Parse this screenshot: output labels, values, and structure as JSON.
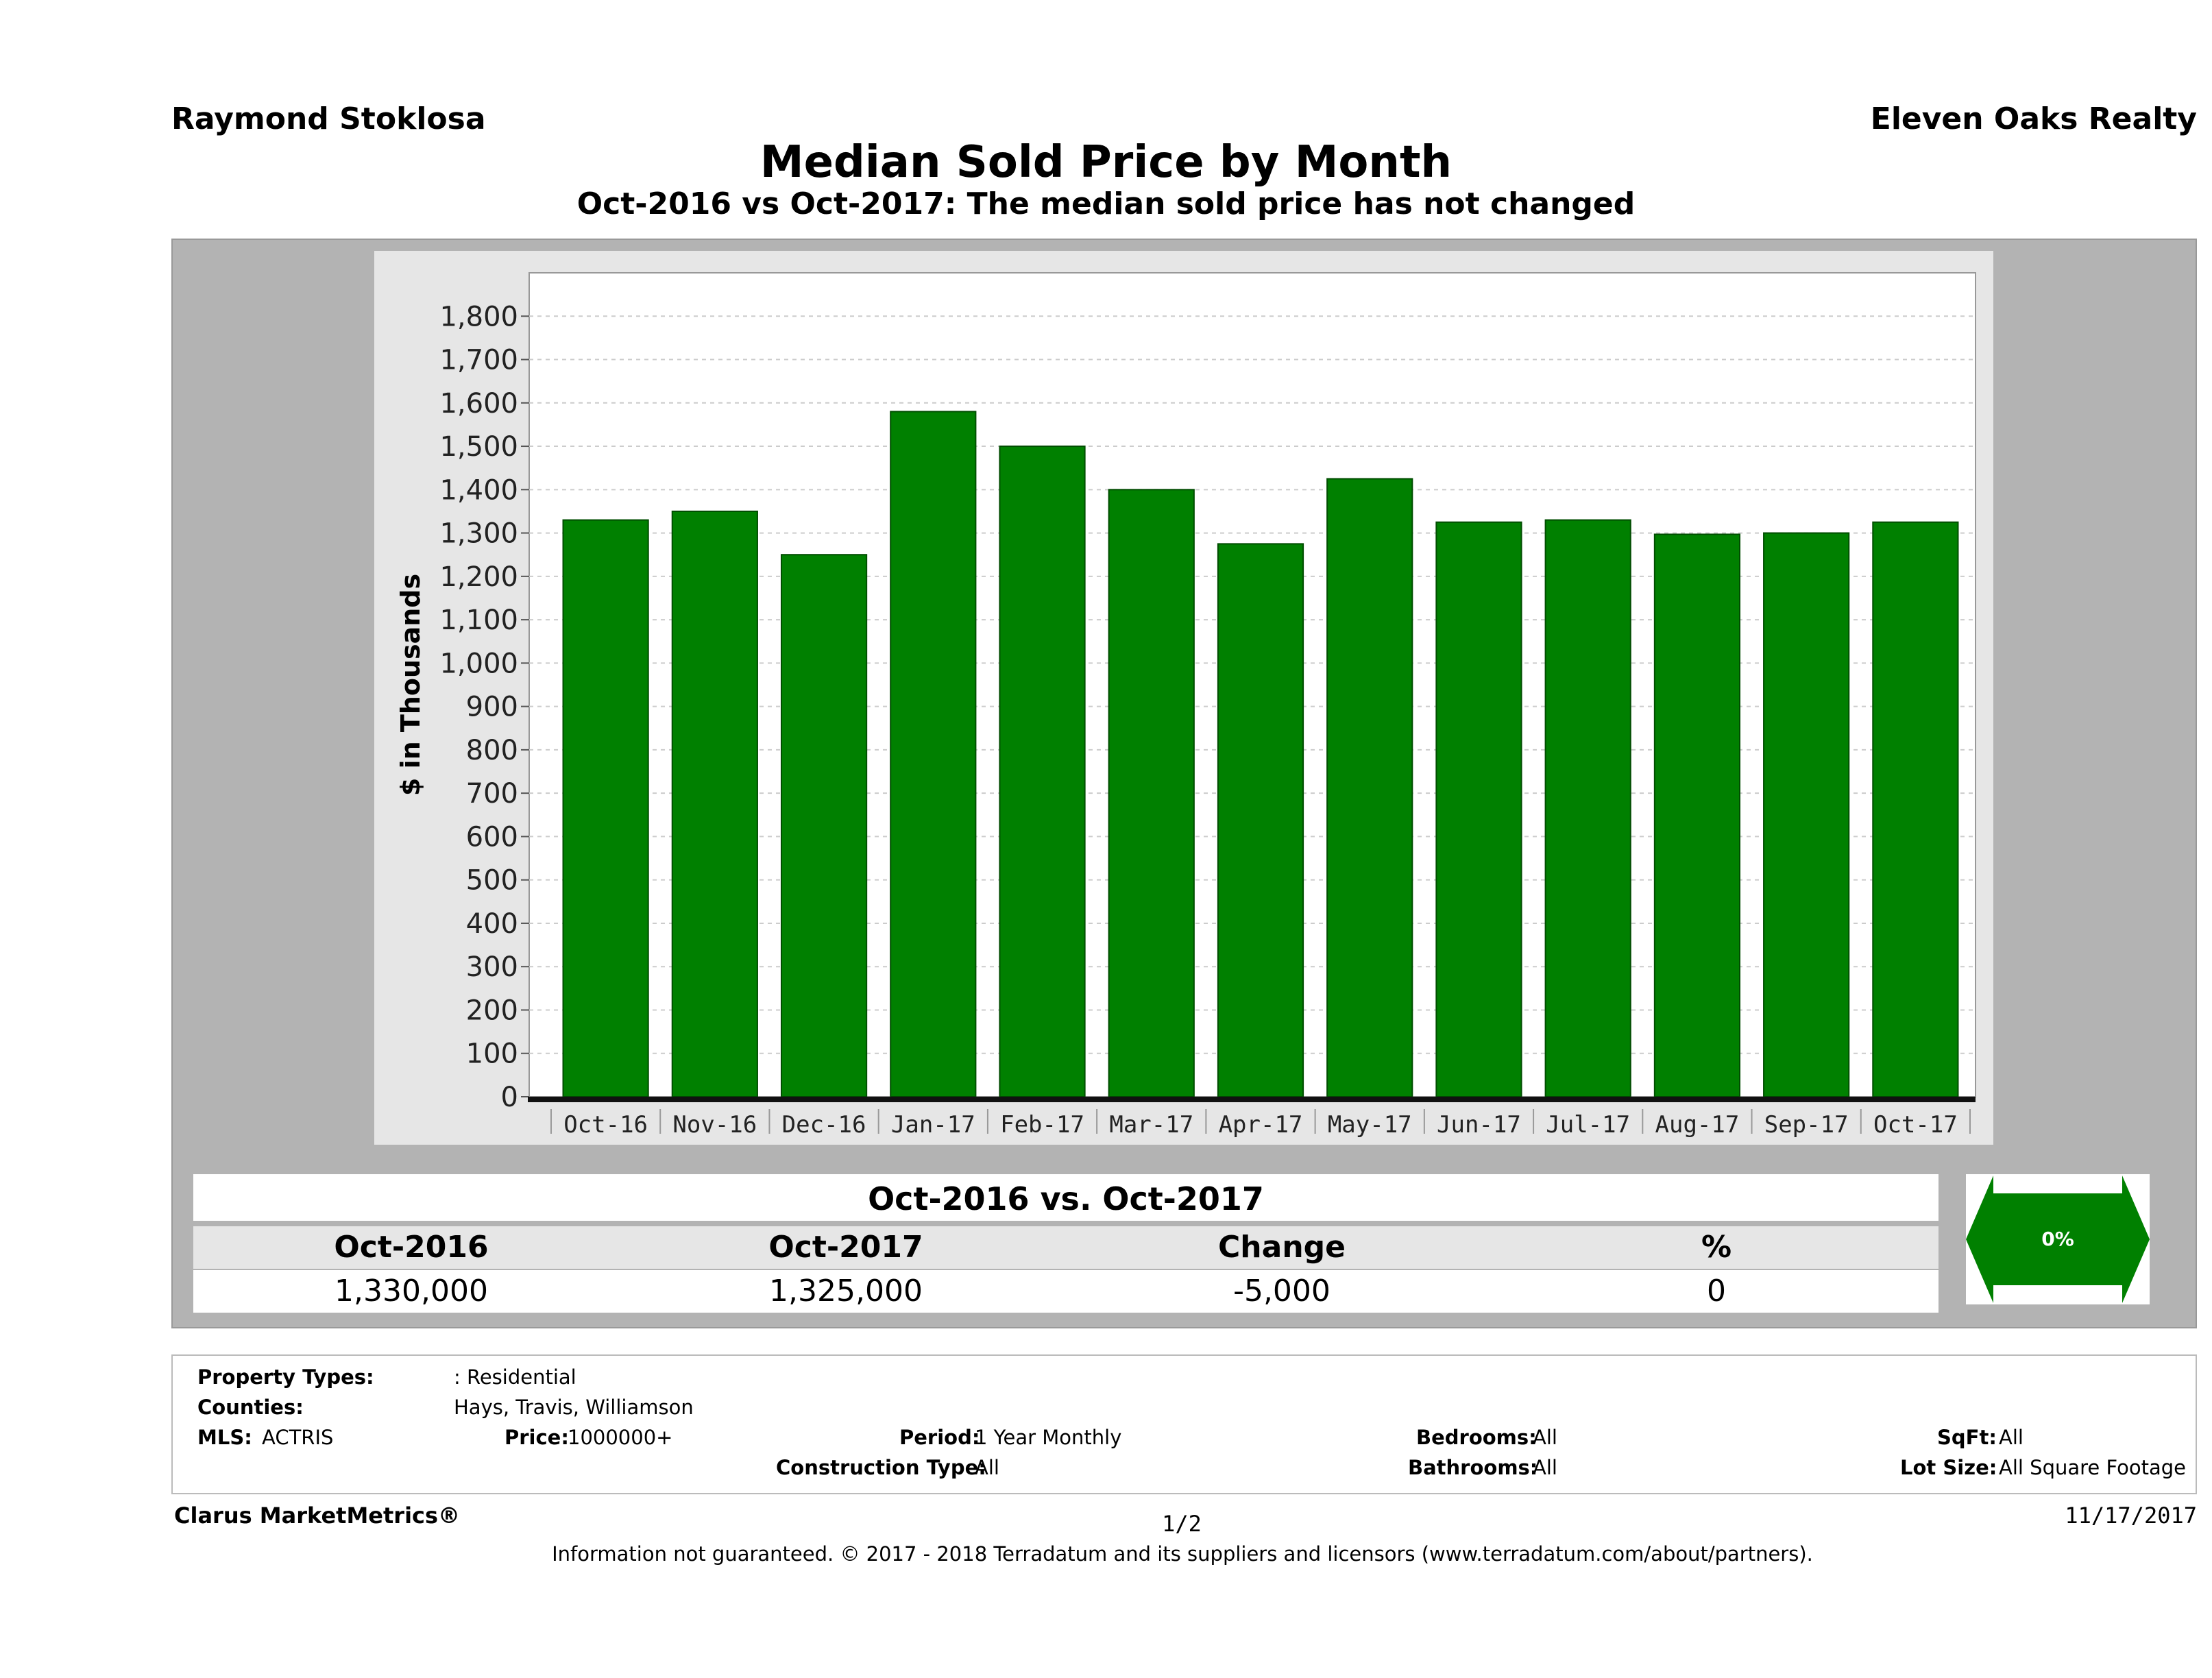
{
  "header": {
    "agent": "Raymond Stoklosa",
    "brokerage": "Eleven Oaks Realty",
    "title": "Median Sold Price by Month",
    "subtitle": "Oct-2016 vs Oct-2017: The median sold price has not changed"
  },
  "chart_data": {
    "type": "bar",
    "ylabel": "$ in Thousands",
    "ylim": [
      0,
      1900
    ],
    "yticks": [
      0,
      100,
      200,
      300,
      400,
      500,
      600,
      700,
      800,
      900,
      1000,
      1100,
      1200,
      1300,
      1400,
      1500,
      1600,
      1700,
      1800
    ],
    "categories": [
      "Oct-16",
      "Nov-16",
      "Dec-16",
      "Jan-17",
      "Feb-17",
      "Mar-17",
      "Apr-17",
      "May-17",
      "Jun-17",
      "Jul-17",
      "Aug-17",
      "Sep-17",
      "Oct-17"
    ],
    "values": [
      1330,
      1350,
      1250,
      1580,
      1500,
      1400,
      1275,
      1425,
      1325,
      1330,
      1297,
      1300,
      1325
    ],
    "bar_color": "#008000",
    "grid": true
  },
  "summary": {
    "heading": "Oct-2016 vs. Oct-2017",
    "headers": [
      "Oct-2016",
      "Oct-2017",
      "Change",
      "%"
    ],
    "values": [
      "1,330,000",
      "1,325,000",
      "-5,000",
      "0"
    ],
    "badge": "0%"
  },
  "filters": {
    "property_types_label": "Property Types:",
    "property_types_value": ": Residential",
    "counties_label": "Counties:",
    "counties_value": "Hays, Travis, Williamson",
    "mls_label": "MLS:",
    "mls_value": "ACTRIS",
    "price_label": "Price:",
    "price_value": "1000000+",
    "period_label": "Period:",
    "period_value": "1 Year Monthly",
    "construction_label": "Construction Type:",
    "construction_value": "All",
    "bedrooms_label": "Bedrooms:",
    "bedrooms_value": "All",
    "bathrooms_label": "Bathrooms:",
    "bathrooms_value": "All",
    "sqft_label": "SqFt:",
    "sqft_value": "All",
    "lotsize_label": "Lot Size:",
    "lotsize_value": "All Square Footage"
  },
  "footer": {
    "brand": "Clarus MarketMetrics®",
    "page": "1/2",
    "date": "11/17/2017",
    "disclaimer": "Information not guaranteed. © 2017 - 2018 Terradatum and its suppliers and licensors (www.terradatum.com/about/partners)."
  }
}
